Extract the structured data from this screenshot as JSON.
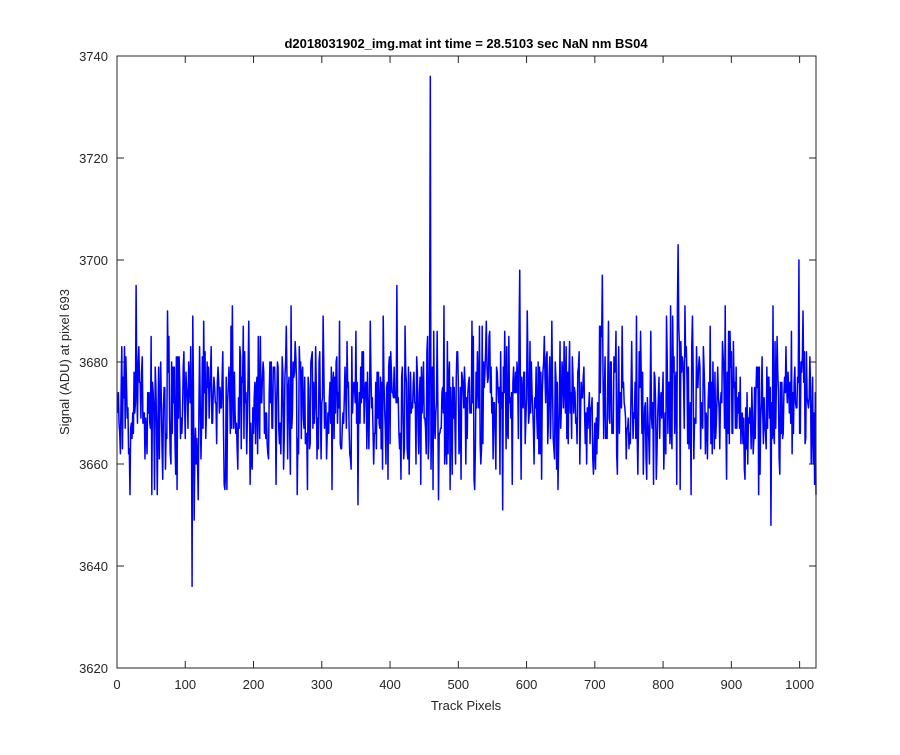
{
  "chart_data": {
    "type": "line",
    "title": "d2018031902_img.mat int time = 28.5103 sec  NaN nm BS04",
    "xlabel": "Track Pixels",
    "ylabel": "Signal (ADU) at pixel 693",
    "xlim": [
      0,
      1024
    ],
    "ylim": [
      3620,
      3740
    ],
    "xticks": [
      0,
      100,
      200,
      300,
      400,
      500,
      600,
      700,
      800,
      900,
      1000
    ],
    "yticks": [
      3620,
      3640,
      3660,
      3680,
      3700,
      3720,
      3740
    ],
    "grid": false,
    "series": [
      {
        "color": "#0000ff",
        "baseline": 3672,
        "noise_amplitude": 8,
        "peaks": [
          {
            "x": 28,
            "y": 3695
          },
          {
            "x": 110,
            "y": 3636
          },
          {
            "x": 113,
            "y": 3649
          },
          {
            "x": 410,
            "y": 3695
          },
          {
            "x": 459,
            "y": 3736
          },
          {
            "x": 590,
            "y": 3698
          },
          {
            "x": 711,
            "y": 3697
          },
          {
            "x": 822,
            "y": 3703
          },
          {
            "x": 958,
            "y": 3648
          },
          {
            "x": 999,
            "y": 3700
          }
        ]
      }
    ]
  }
}
